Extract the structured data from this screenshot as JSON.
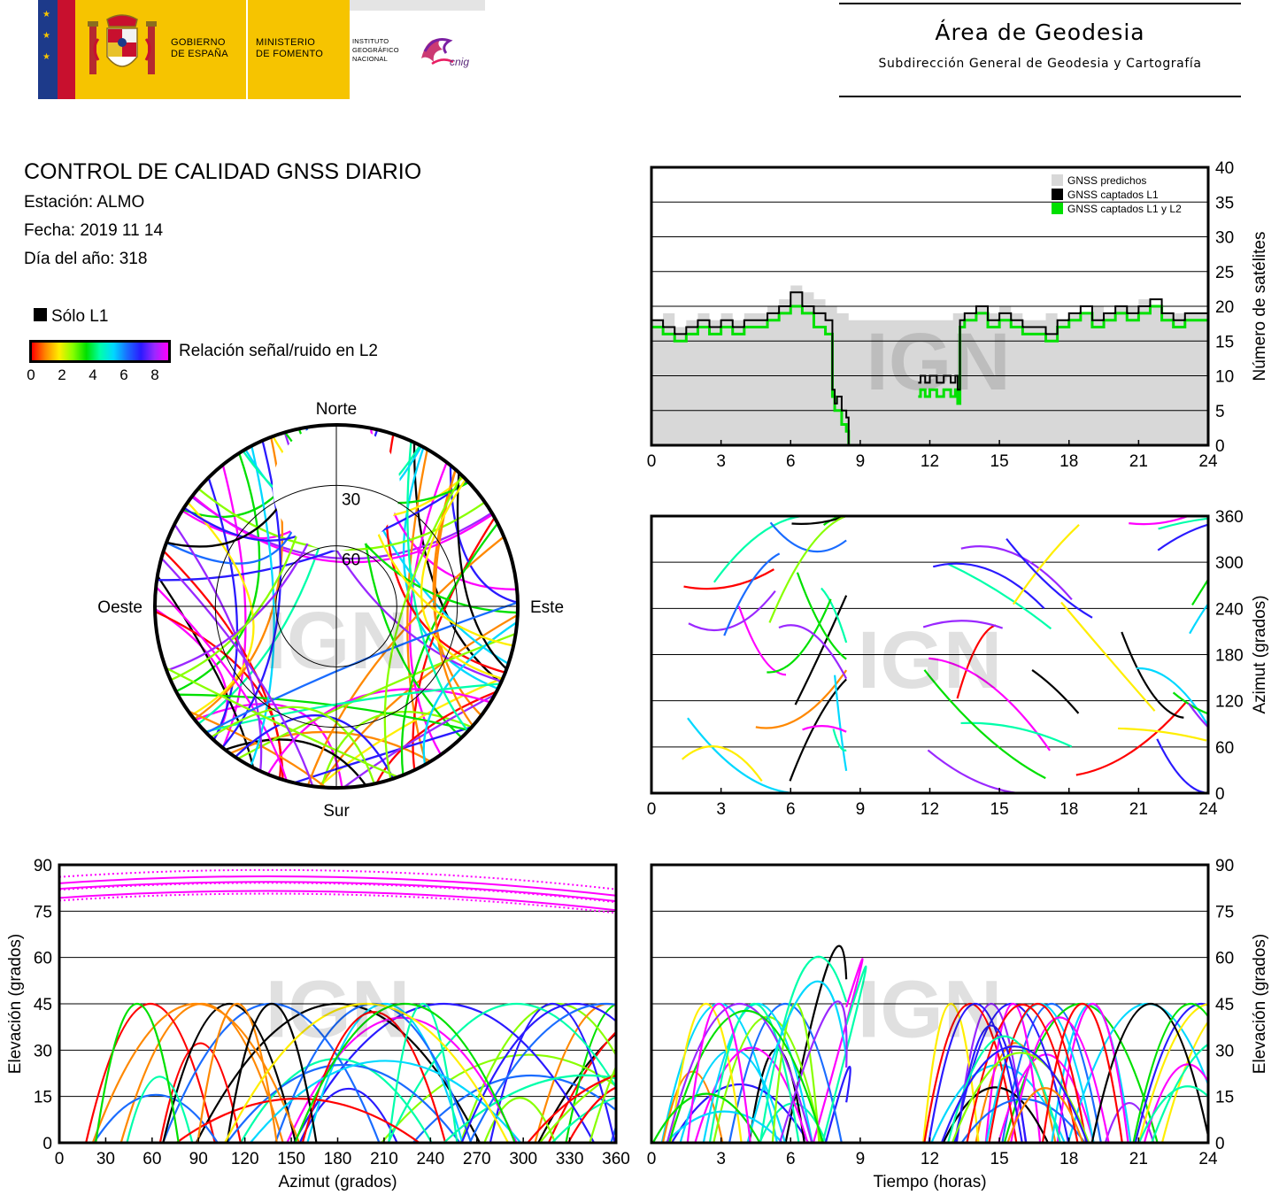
{
  "header": {
    "gov_line1": "GOBIERNO",
    "gov_line2": "DE ESPAÑA",
    "min_line1": "MINISTERIO",
    "min_line2": "DE FOMENTO",
    "ign_line1": "INSTITUTO",
    "ign_line2": "GEOGRÁFICO",
    "ign_line3": "NACIONAL",
    "cnig_word": "cnig",
    "area_title": "Área de Geodesia",
    "area_subtitle": "Subdirección General de Geodesia y Cartografía"
  },
  "info": {
    "title": "CONTROL DE CALIDAD GNSS DIARIO",
    "station": "Estación: ALMO",
    "date": "Fecha: 2019 11 14",
    "doy": "Día del año: 318",
    "l1_only": "Sólo L1",
    "snr_label": "Relación señal/ruido en L2",
    "snr_ticks": [
      "0",
      "2",
      "4",
      "6",
      "8"
    ]
  },
  "colors": {
    "predicted": "#d8d8d8",
    "l1": "#000000",
    "l1l2": "#00e000",
    "snr_scale": [
      "#ff0000",
      "#ff8800",
      "#ffee00",
      "#88ff00",
      "#00e000",
      "#00ffaa",
      "#00d8ff",
      "#1a6cff",
      "#2a1aff",
      "#9a28ff",
      "#ff00ff"
    ]
  },
  "watermark": "IGN",
  "chart_data": [
    {
      "id": "satellite-count",
      "type": "area",
      "x_ticks": [
        "0",
        "3",
        "6",
        "9",
        "12",
        "15",
        "18",
        "21",
        "24"
      ],
      "xlim": [
        0,
        24
      ],
      "ylim": [
        0,
        40
      ],
      "y_ticks": [
        "0",
        "5",
        "10",
        "15",
        "20",
        "25",
        "30",
        "35",
        "40"
      ],
      "ylabel": "Número de satélites",
      "grid": true,
      "legend_position": "top-right",
      "series": [
        {
          "name": "GNSS predichos",
          "x": [
            0,
            0.5,
            1,
            1.5,
            2,
            2.5,
            3,
            3.5,
            4,
            4.5,
            5,
            5.5,
            6,
            6.5,
            7,
            7.5,
            8,
            8.5,
            9,
            9.5,
            10,
            10.5,
            11,
            11.5,
            12,
            12.5,
            13,
            13.5,
            14,
            14.5,
            15,
            15.5,
            16,
            16.5,
            17,
            17.5,
            18,
            18.5,
            19,
            19.5,
            20,
            20.5,
            21,
            21.5,
            22,
            22.5,
            23,
            23.5,
            24
          ],
          "values": [
            18,
            19,
            17,
            18,
            19,
            18,
            19,
            18,
            19,
            19,
            20,
            21,
            23,
            22,
            21,
            20,
            19,
            18,
            18,
            18,
            18,
            18,
            18,
            18,
            18,
            18,
            19,
            19,
            20,
            19,
            20,
            19,
            18,
            18,
            19,
            18,
            19,
            19,
            20,
            19,
            20,
            20,
            21,
            20,
            19,
            19,
            19,
            19,
            19
          ]
        },
        {
          "name": "GNSS captados L1",
          "x": [
            0,
            0.5,
            1,
            1.5,
            2,
            2.5,
            3,
            3.5,
            4,
            4.5,
            5,
            5.5,
            6,
            6.5,
            7,
            7.5,
            7.8,
            7.9,
            8.0,
            8.2,
            8.4,
            8.5,
            11.5,
            11.6,
            11.8,
            12,
            12.3,
            12.6,
            12.9,
            13.1,
            13.2,
            13.3,
            13.5,
            14,
            14.5,
            15,
            15.5,
            16,
            16.5,
            17,
            17.5,
            18,
            18.5,
            19,
            19.5,
            20,
            20.5,
            21,
            21.5,
            22,
            22.5,
            23,
            23.5,
            24
          ],
          "values": [
            18,
            17,
            16,
            17,
            18,
            17,
            18,
            17,
            18,
            18,
            19,
            20,
            22,
            20,
            19,
            18,
            8,
            6,
            7,
            5,
            4,
            0,
            9,
            10,
            9,
            10,
            9,
            10,
            9,
            10,
            8,
            18,
            19,
            20,
            18,
            19,
            18,
            17,
            17,
            16,
            18,
            19,
            20,
            18,
            19,
            20,
            19,
            20,
            21,
            19,
            18,
            19,
            19,
            18
          ]
        },
        {
          "name": "GNSS captados L1 y L2",
          "x": [
            0,
            0.5,
            1,
            1.5,
            2,
            2.5,
            3,
            3.5,
            4,
            4.5,
            5,
            5.5,
            6,
            6.5,
            7,
            7.5,
            7.8,
            7.9,
            8.0,
            8.2,
            8.4,
            8.5,
            11.5,
            11.6,
            11.8,
            12,
            12.3,
            12.6,
            12.9,
            13.1,
            13.2,
            13.3,
            13.5,
            14,
            14.5,
            15,
            15.5,
            16,
            16.5,
            17,
            17.5,
            18,
            18.5,
            19,
            19.5,
            20,
            20.5,
            21,
            21.5,
            22,
            22.5,
            23,
            23.5,
            24
          ],
          "values": [
            17,
            16,
            15,
            16,
            17,
            16,
            17,
            16,
            17,
            17,
            18,
            19,
            20,
            19,
            17,
            16,
            7,
            5,
            5,
            3,
            2,
            0,
            7,
            8,
            7,
            8,
            7,
            8,
            7,
            8,
            6,
            17,
            18,
            19,
            17,
            18,
            17,
            16,
            16,
            15,
            17,
            18,
            19,
            17,
            18,
            19,
            18,
            19,
            20,
            18,
            17,
            18,
            18,
            17
          ]
        }
      ]
    },
    {
      "id": "skyplot",
      "type": "scatter",
      "projection": "polar",
      "labels_north": "Norte",
      "labels_south": "Sur",
      "labels_east": "Este",
      "labels_west": "Oeste",
      "ring_labels": [
        "30",
        "60"
      ]
    },
    {
      "id": "azimuth-vs-time",
      "type": "scatter",
      "x_ticks": [
        "0",
        "3",
        "6",
        "9",
        "12",
        "15",
        "18",
        "21",
        "24"
      ],
      "y_ticks": [
        "0",
        "60",
        "120",
        "180",
        "240",
        "300",
        "360"
      ],
      "xlim": [
        0,
        24
      ],
      "ylim": [
        0,
        360
      ],
      "ylabel": "Azimut (grados)",
      "grid": true
    },
    {
      "id": "elevation-vs-azimuth",
      "type": "scatter",
      "x_ticks": [
        "0",
        "30",
        "60",
        "90",
        "120",
        "150",
        "180",
        "210",
        "240",
        "270",
        "300",
        "330",
        "360"
      ],
      "y_ticks": [
        "0",
        "15",
        "30",
        "45",
        "60",
        "75",
        "90"
      ],
      "xlim": [
        0,
        360
      ],
      "ylim": [
        0,
        90
      ],
      "xlabel": "Azimut (grados)",
      "ylabel": "Elevación (grados)",
      "grid": true
    },
    {
      "id": "elevation-vs-time",
      "type": "scatter",
      "x_ticks": [
        "0",
        "3",
        "6",
        "9",
        "12",
        "15",
        "18",
        "21",
        "24"
      ],
      "y_ticks": [
        "0",
        "15",
        "30",
        "45",
        "60",
        "75",
        "90"
      ],
      "xlim": [
        0,
        24
      ],
      "ylim": [
        0,
        90
      ],
      "xlabel": "Tiempo (horas)",
      "ylabel": "Elevación (grados)",
      "grid": true
    }
  ]
}
